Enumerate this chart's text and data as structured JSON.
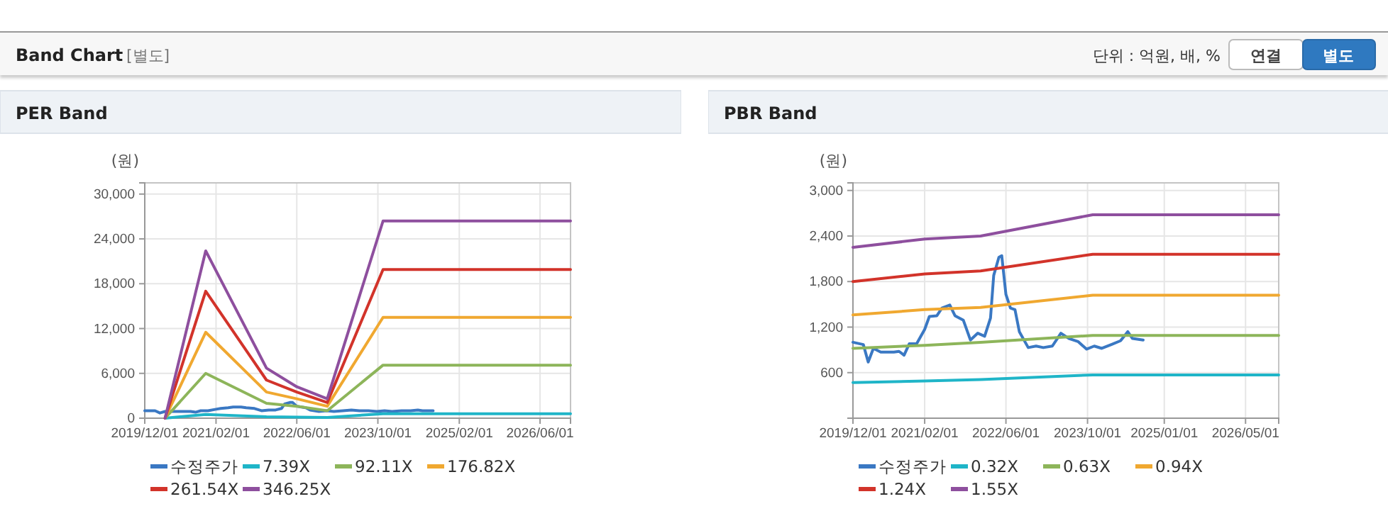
{
  "chart_data": [
    {
      "type": "line",
      "title": "PER Band",
      "ylabel": "(원)",
      "annotations": [
        "Band Chart",
        "[별도]",
        "단위 : 억원, 배, %",
        "연결",
        "별도"
      ],
      "xlim": [
        "2019-12-01",
        "2026-12-01"
      ],
      "xticks": [
        {
          "value": "2019-12-01",
          "label": "2019/12/01"
        },
        {
          "value": "2021-02-01",
          "label": "2021/02/01"
        },
        {
          "value": "2022-06-01",
          "label": "2022/06/01"
        },
        {
          "value": "2023-10-01",
          "label": "2023/10/01"
        },
        {
          "value": "2025-02-01",
          "label": "2025/02/01"
        },
        {
          "value": "2026-06-01",
          "label": "2026/06/01"
        }
      ],
      "ylim": [
        0,
        31500
      ],
      "yticks": [
        0,
        {
          "value": 6000,
          "label": "6,000"
        },
        {
          "value": 12000,
          "label": "12,000"
        },
        {
          "value": 18000,
          "label": "18,000"
        },
        {
          "value": 24000,
          "label": "24,000"
        },
        {
          "value": 30000,
          "label": "30,000"
        }
      ],
      "grid": true,
      "legend": "bottom",
      "series": [
        {
          "name": "수정주가",
          "color": "#3a78c3",
          "x": [
            "2019-12-01",
            "2020-02-01",
            "2020-03-01",
            "2020-04-01",
            "2020-05-15",
            "2020-08-01",
            "2020-09-01",
            "2020-10-01",
            "2020-11-01",
            "2020-12-15",
            "2021-02-01",
            "2021-03-01",
            "2021-04-15",
            "2021-05-15",
            "2021-07-01",
            "2021-08-01",
            "2021-09-20",
            "2021-11-01",
            "2021-12-15",
            "2022-01-25",
            "2022-03-01",
            "2022-03-20",
            "2022-04-20",
            "2022-05-07",
            "2022-06-01",
            "2022-06-28",
            "2022-07-25",
            "2022-08-20",
            "2022-10-12",
            "2022-11-28",
            "2023-01-10",
            "2023-03-05",
            "2023-04-25",
            "2023-06-12",
            "2023-08-05",
            "2023-09-25",
            "2023-11-10",
            "2023-12-25",
            "2024-02-20",
            "2024-04-15",
            "2024-05-28",
            "2024-06-25",
            "2024-08-28"
          ],
          "values": [
            1000,
            1000,
            700,
            900,
            900,
            900,
            900,
            800,
            1000,
            1000,
            1200,
            1300,
            1400,
            1500,
            1500,
            1400,
            1300,
            1000,
            1100,
            1100,
            1300,
            1900,
            2100,
            2100,
            1600,
            1500,
            1400,
            1100,
            900,
            1000,
            900,
            1000,
            1100,
            1000,
            1000,
            900,
            1000,
            900,
            1000,
            1000,
            1100,
            1000,
            1000
          ]
        },
        {
          "name": "7.39X",
          "color": "#1fb5c8",
          "x": [
            "2020-04-01",
            "2020-12-01",
            "2021-12-01",
            "2022-12-01",
            "2023-11-01",
            "2026-12-01"
          ],
          "values": [
            0,
            500,
            200,
            100,
            600,
            600
          ]
        },
        {
          "name": "92.11X",
          "color": "#8db55a",
          "x": [
            "2020-04-01",
            "2020-12-01",
            "2021-12-01",
            "2022-06-01",
            "2022-12-01",
            "2023-11-01",
            "2026-12-01"
          ],
          "values": [
            0,
            6000,
            2000,
            1600,
            1000,
            7100,
            7100
          ]
        },
        {
          "name": "176.82X",
          "color": "#f0a830",
          "x": [
            "2020-04-01",
            "2020-12-01",
            "2021-12-01",
            "2022-06-01",
            "2022-12-01",
            "2023-11-01",
            "2026-12-01"
          ],
          "values": [
            0,
            11500,
            3500,
            2600,
            1600,
            13500,
            13500
          ]
        },
        {
          "name": "261.54X",
          "color": "#d2332a",
          "x": [
            "2020-04-01",
            "2020-12-01",
            "2021-12-01",
            "2022-06-01",
            "2022-12-01",
            "2023-11-01",
            "2026-12-01"
          ],
          "values": [
            0,
            17000,
            5100,
            3500,
            2100,
            19900,
            19900
          ]
        },
        {
          "name": "346.25X",
          "color": "#8e4f9e",
          "x": [
            "2020-04-01",
            "2020-12-01",
            "2021-12-01",
            "2022-06-01",
            "2022-12-01",
            "2023-11-01",
            "2026-12-01"
          ],
          "values": [
            0,
            22400,
            6700,
            4200,
            2600,
            26400,
            26400
          ]
        }
      ]
    },
    {
      "type": "line",
      "title": "PBR Band",
      "ylabel": "(원)",
      "xlim": [
        "2019-12-01",
        "2026-11-15"
      ],
      "xticks": [
        {
          "value": "2019-12-01",
          "label": "2019/12/01"
        },
        {
          "value": "2021-02-01",
          "label": "2021/02/01"
        },
        {
          "value": "2022-06-01",
          "label": "2022/06/01"
        },
        {
          "value": "2023-10-01",
          "label": "2023/10/01"
        },
        {
          "value": "2025-01-01",
          "label": "2025/01/01"
        },
        {
          "value": "2026-05-01",
          "label": "2026/05/01"
        }
      ],
      "ylim": [
        0,
        3100
      ],
      "yticks": [
        600,
        {
          "value": 1200,
          "label": "1,200"
        },
        {
          "value": 1800,
          "label": "1,800"
        },
        {
          "value": 2400,
          "label": "2,400"
        },
        {
          "value": 3000,
          "label": "3,000"
        }
      ],
      "grid": true,
      "legend": "bottom",
      "series": [
        {
          "name": "수정주가",
          "color": "#3a78c3",
          "x": [
            "2019-12-01",
            "2020-02-01",
            "2020-03-01",
            "2020-04-01",
            "2020-05-15",
            "2020-08-01",
            "2020-09-01",
            "2020-10-01",
            "2020-11-01",
            "2020-12-15",
            "2021-02-01",
            "2021-03-01",
            "2021-04-15",
            "2021-05-15",
            "2021-07-01",
            "2021-08-01",
            "2021-09-20",
            "2021-11-01",
            "2021-12-15",
            "2022-01-25",
            "2022-03-01",
            "2022-03-20",
            "2022-04-20",
            "2022-05-07",
            "2022-06-01",
            "2022-06-28",
            "2022-07-25",
            "2022-08-20",
            "2022-10-12",
            "2022-11-28",
            "2023-01-10",
            "2023-03-05",
            "2023-04-25",
            "2023-06-12",
            "2023-08-05",
            "2023-09-25",
            "2023-11-10",
            "2023-12-25",
            "2024-02-20",
            "2024-04-15",
            "2024-05-28",
            "2024-06-25",
            "2024-08-28"
          ],
          "values": [
            1000,
            970,
            740,
            920,
            870,
            870,
            880,
            830,
            980,
            980,
            1170,
            1340,
            1350,
            1450,
            1490,
            1350,
            1290,
            1030,
            1120,
            1080,
            1320,
            1880,
            2120,
            2140,
            1630,
            1450,
            1430,
            1140,
            930,
            950,
            930,
            950,
            1120,
            1050,
            1010,
            910,
            950,
            920,
            970,
            1020,
            1140,
            1050,
            1030
          ]
        },
        {
          "name": "0.32X",
          "color": "#1fb5c8",
          "x": [
            "2019-12-01",
            "2021-02-01",
            "2022-01-01",
            "2023-11-01",
            "2026-11-15"
          ],
          "values": [
            470,
            490,
            510,
            570,
            570
          ]
        },
        {
          "name": "0.63X",
          "color": "#8db55a",
          "x": [
            "2019-12-01",
            "2021-02-01",
            "2022-01-01",
            "2023-11-01",
            "2026-11-15"
          ],
          "values": [
            920,
            960,
            1000,
            1090,
            1090
          ]
        },
        {
          "name": "0.94X",
          "color": "#f0a830",
          "x": [
            "2019-12-01",
            "2021-02-01",
            "2022-01-01",
            "2023-11-01",
            "2026-11-15"
          ],
          "values": [
            1360,
            1430,
            1460,
            1620,
            1620
          ]
        },
        {
          "name": "1.24X",
          "color": "#d2332a",
          "x": [
            "2019-12-01",
            "2021-02-01",
            "2022-01-01",
            "2023-11-01",
            "2026-11-15"
          ],
          "values": [
            1800,
            1900,
            1940,
            2160,
            2160
          ]
        },
        {
          "name": "1.55X",
          "color": "#8e4f9e",
          "x": [
            "2019-12-01",
            "2021-02-01",
            "2022-01-01",
            "2023-11-01",
            "2026-11-15"
          ],
          "values": [
            2250,
            2360,
            2400,
            2680,
            2680
          ]
        }
      ]
    }
  ]
}
